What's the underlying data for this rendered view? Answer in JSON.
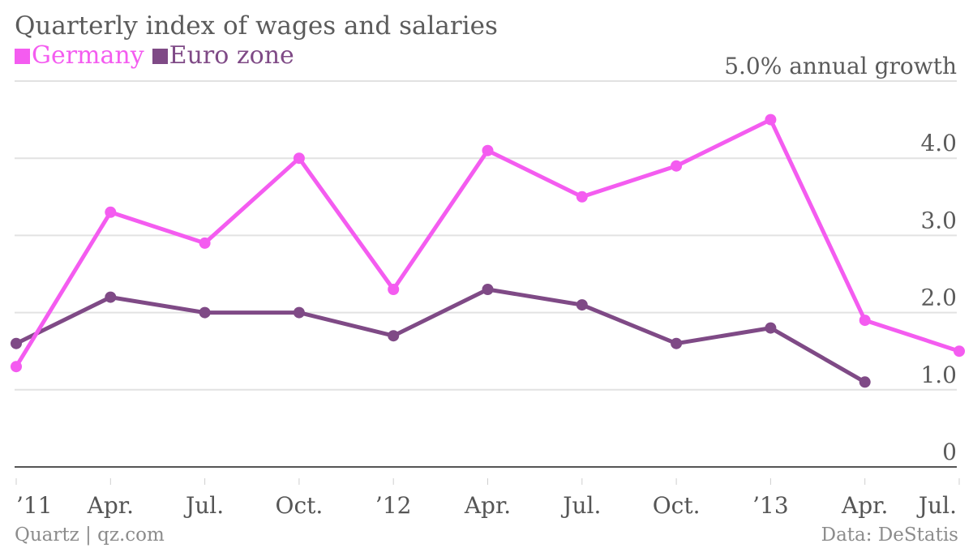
{
  "title": "Quarterly index of wages and salaries",
  "legend": [
    {
      "label": "Germany",
      "color": "#f45cf0"
    },
    {
      "label": "Euro zone",
      "color": "#7f4a86"
    }
  ],
  "footer": {
    "source_left": "Quartz | qz.com",
    "source_right": "Data: DeStatis"
  },
  "chart_data": {
    "type": "line",
    "title": "Quarterly index of wages and salaries",
    "xlabel": "",
    "ylabel": "",
    "y_unit_label": "annual growth",
    "ylim": [
      0,
      5.0
    ],
    "yticks": [
      {
        "value": 0,
        "label": "0"
      },
      {
        "value": 1.0,
        "label": "1.0"
      },
      {
        "value": 2.0,
        "label": "2.0"
      },
      {
        "value": 3.0,
        "label": "3.0"
      },
      {
        "value": 4.0,
        "label": "4.0"
      },
      {
        "value": 5.0,
        "label": "5.0% annual growth"
      }
    ],
    "x_tick_labels": [
      "’11",
      "Apr.",
      "Jul.",
      "Oct.",
      "’12",
      "Apr.",
      "Jul.",
      "Oct.",
      "’13",
      "Apr.",
      "Jul."
    ],
    "grid": true,
    "legend_position": "top-left",
    "series": [
      {
        "name": "Germany",
        "color": "#f45cf0",
        "values": [
          1.3,
          3.3,
          2.9,
          4.0,
          2.3,
          4.1,
          3.5,
          3.9,
          4.5,
          1.9,
          1.5
        ]
      },
      {
        "name": "Euro zone",
        "color": "#7f4a86",
        "values": [
          1.6,
          2.2,
          2.0,
          2.0,
          1.7,
          2.3,
          2.1,
          1.6,
          1.8,
          1.1,
          null
        ]
      }
    ]
  }
}
